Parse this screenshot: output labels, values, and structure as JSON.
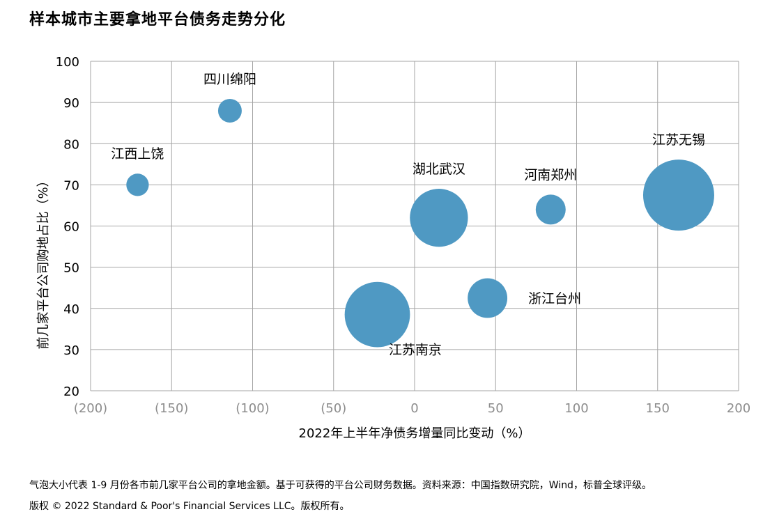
{
  "title": "样本城市主要拿地平台债务走势分化",
  "chart_data": {
    "type": "scatter",
    "subtype": "bubble",
    "xlabel": "2022年上半年净债务增量同比变动（%）",
    "ylabel": "前几家平台公司购地占比（%）",
    "xlim": [
      -200,
      200
    ],
    "ylim": [
      20,
      100
    ],
    "x_ticks": [
      -200,
      -150,
      -100,
      -50,
      0,
      50,
      100,
      150,
      200
    ],
    "x_tick_labels": [
      "(200)",
      "(150)",
      "(100)",
      "(50)",
      "0",
      "50",
      "100",
      "150",
      "200"
    ],
    "y_ticks": [
      20,
      30,
      40,
      50,
      60,
      70,
      80,
      90,
      100
    ],
    "y_tick_labels": [
      "20",
      "30",
      "40",
      "50",
      "60",
      "70",
      "80",
      "90",
      "100"
    ],
    "grid": true,
    "bubble_color": "#4f99c3",
    "points": [
      {
        "label": "四川绵阳",
        "x": -114,
        "y": 88,
        "size": 1.0,
        "label_pos": "above"
      },
      {
        "label": "江西上饶",
        "x": -171,
        "y": 70,
        "size": 0.9,
        "label_pos": "above"
      },
      {
        "label": "湖北武汉",
        "x": 15,
        "y": 62,
        "size": 6.0,
        "label_pos": "above"
      },
      {
        "label": "河南郑州",
        "x": 84,
        "y": 64,
        "size": 1.6,
        "label_pos": "above"
      },
      {
        "label": "江苏无锡",
        "x": 163,
        "y": 67.5,
        "size": 9.0,
        "label_pos": "above"
      },
      {
        "label": "浙江台州",
        "x": 45,
        "y": 42.5,
        "size": 2.8,
        "label_pos": "right"
      },
      {
        "label": "江苏南京",
        "x": -23,
        "y": 38.5,
        "size": 7.6,
        "label_pos": "below-right"
      }
    ]
  },
  "footer": {
    "note": "气泡大小代表 1-9 月份各市前几家平台公司的拿地金额。基于可获得的平台公司财务数据。资料来源：中国指数研究院，Wind，标普全球评级。",
    "copyright": "版权 © 2022 Standard & Poor's Financial Services LLC。版权所有。"
  }
}
